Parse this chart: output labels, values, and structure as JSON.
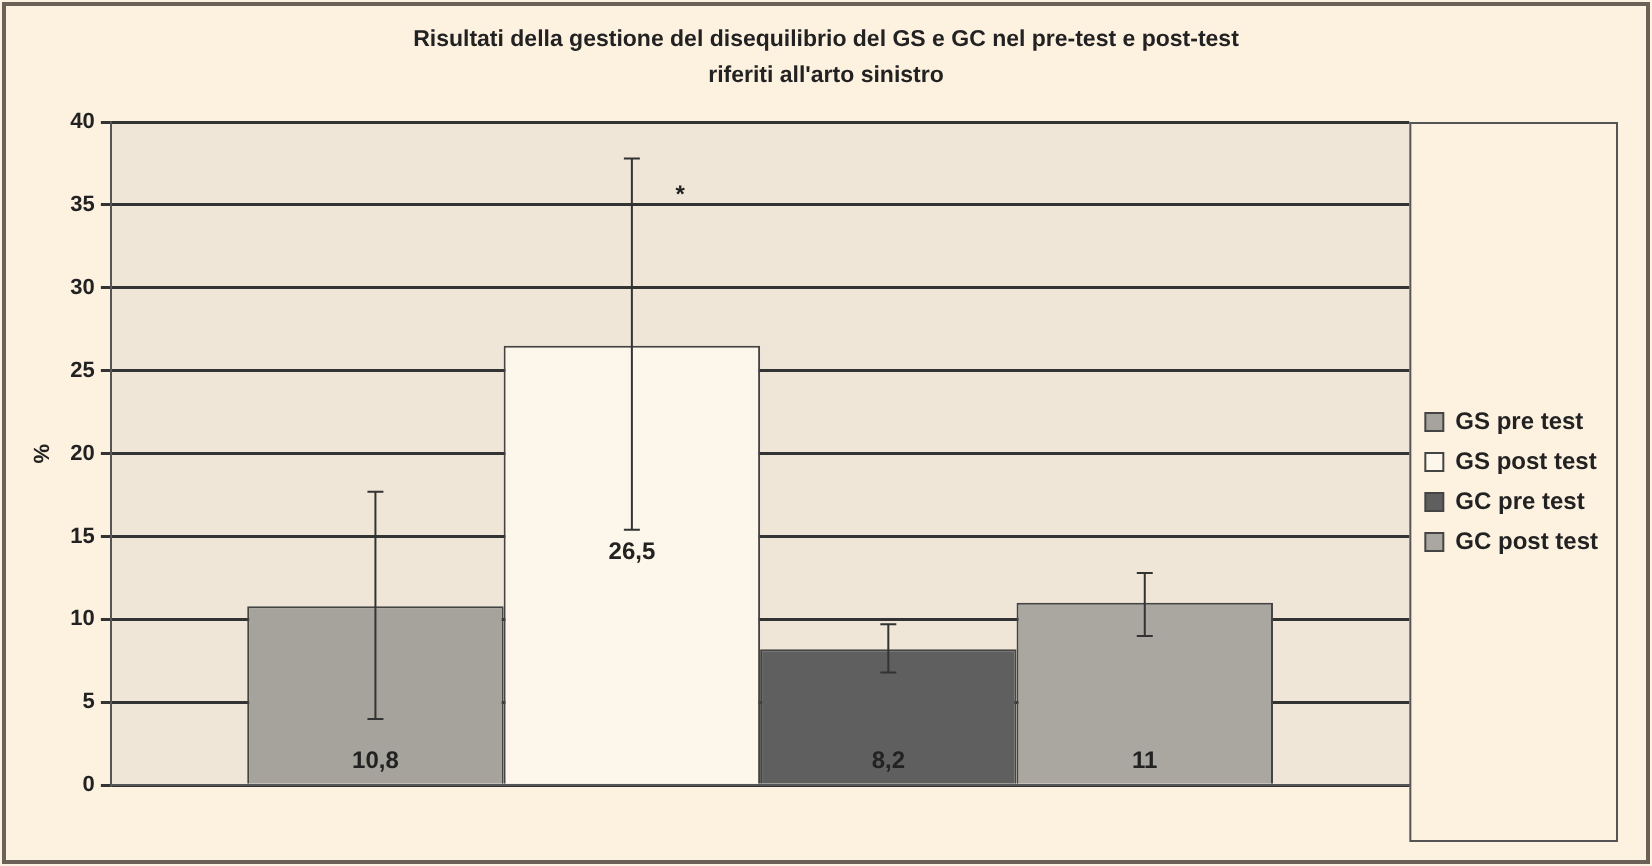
{
  "chart_data": {
    "type": "bar",
    "title": "Risultati della gestione del disequilibrio del GS e GC nel pre-test e post-test riferiti all'arto sinistro",
    "ylabel": "%",
    "categories": [
      null
    ],
    "series": [
      {
        "name": "GS pre test",
        "color": "#a6a39c",
        "values": [
          10.8
        ],
        "errors": [
          [
            4,
            17.7
          ]
        ],
        "value_labels": [
          "10,8"
        ]
      },
      {
        "name": "GS post test",
        "color": "#fdf6ea",
        "values": [
          26.5
        ],
        "errors": [
          [
            15.4,
            37.8
          ]
        ],
        "value_labels": [
          "26,5"
        ]
      },
      {
        "name": "GC pre test",
        "color": "#5f5f5f",
        "values": [
          8.2
        ],
        "errors": [
          [
            6.8,
            9.7
          ]
        ],
        "value_labels": [
          "8,2"
        ]
      },
      {
        "name": "GC post test",
        "color": "#a9a7a0",
        "values": [
          11
        ],
        "errors": [
          [
            9,
            12.8
          ]
        ],
        "value_labels": [
          "11"
        ]
      }
    ],
    "annotations": [
      "*"
    ],
    "ylim": [
      0,
      40
    ],
    "yticks": [
      0,
      5,
      10,
      15,
      20,
      25,
      30,
      35,
      40
    ],
    "grid": "y",
    "legend": "right"
  }
}
